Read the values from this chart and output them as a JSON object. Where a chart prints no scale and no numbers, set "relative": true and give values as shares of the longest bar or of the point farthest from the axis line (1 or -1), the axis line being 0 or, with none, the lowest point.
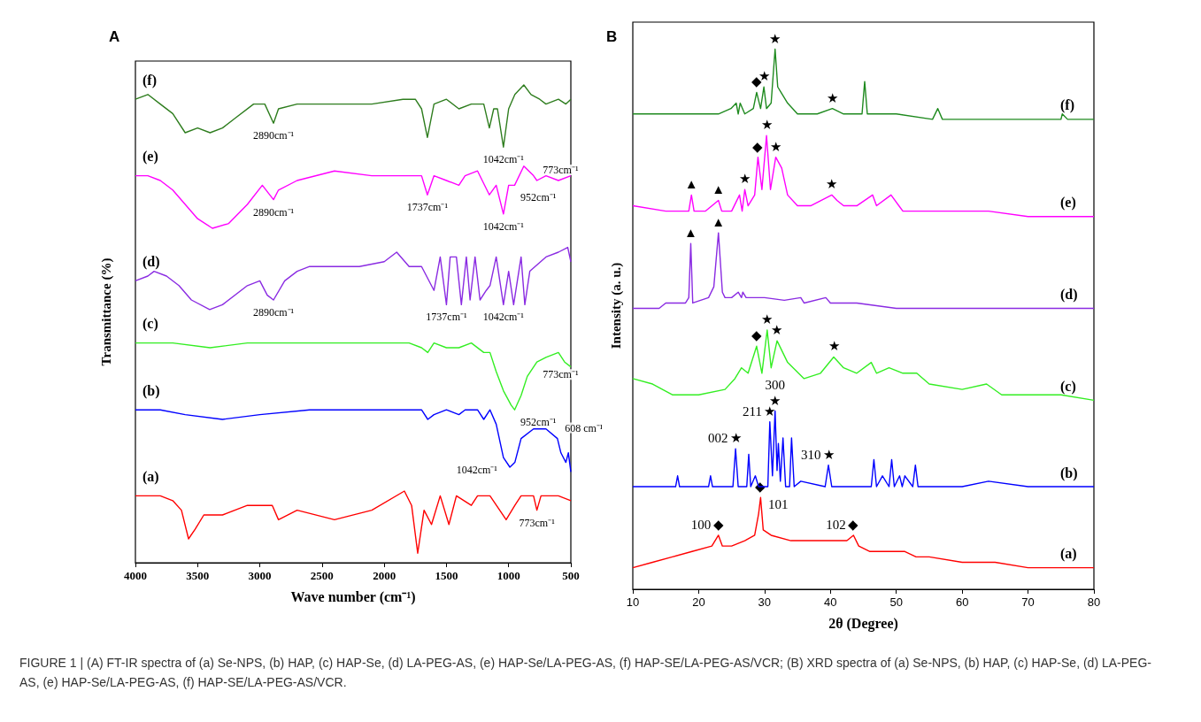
{
  "chart_data": [
    {
      "type": "line",
      "title": "A",
      "xlabel": "Wave number (cm⁻¹)",
      "ylabel": "Transmittance (%)",
      "relative": true,
      "xlim": [
        4000,
        500
      ],
      "xticks": [
        4000,
        3500,
        3000,
        2500,
        2000,
        1500,
        1000,
        500
      ],
      "grid": false,
      "legend": false,
      "marker": "none",
      "line_style": "solid",
      "series": [
        {
          "name": "(a)",
          "color": "#ff0000",
          "x": [
            4000,
            3800,
            3700,
            3630,
            3573,
            3520,
            3450,
            3300,
            3100,
            2900,
            2850,
            2700,
            2400,
            2100,
            1838,
            1780,
            1731,
            1680,
            1620,
            1550,
            1480,
            1420,
            1300,
            1250,
            1150,
            1020,
            950,
            900,
            800,
            773,
            740,
            600,
            500
          ],
          "values": [
            0.14,
            0.14,
            0.13,
            0.11,
            0.05,
            0.07,
            0.1,
            0.1,
            0.12,
            0.12,
            0.09,
            0.11,
            0.09,
            0.11,
            0.15,
            0.12,
            0.02,
            0.11,
            0.08,
            0.14,
            0.08,
            0.14,
            0.12,
            0.14,
            0.14,
            0.09,
            0.12,
            0.14,
            0.14,
            0.11,
            0.14,
            0.14,
            0.13
          ]
        },
        {
          "name": "(b)",
          "color": "#0000ff",
          "x": [
            4000,
            3800,
            3600,
            3300,
            3000,
            2600,
            2200,
            1800,
            1700,
            1650,
            1600,
            1500,
            1400,
            1350,
            1250,
            1200,
            1150,
            1100,
            1042,
            990,
            950,
            900,
            800,
            700,
            608,
            580,
            540,
            520,
            500
          ],
          "values": [
            0.32,
            0.32,
            0.31,
            0.3,
            0.31,
            0.32,
            0.32,
            0.32,
            0.32,
            0.3,
            0.31,
            0.32,
            0.31,
            0.32,
            0.32,
            0.3,
            0.32,
            0.29,
            0.22,
            0.2,
            0.21,
            0.26,
            0.28,
            0.28,
            0.26,
            0.23,
            0.21,
            0.23,
            0.19
          ]
        },
        {
          "name": "(c)",
          "color": "#33ee22",
          "x": [
            4000,
            3700,
            3400,
            3100,
            2900,
            2600,
            2200,
            1800,
            1700,
            1650,
            1600,
            1500,
            1400,
            1300,
            1200,
            1150,
            1100,
            1042,
            980,
            952,
            900,
            850,
            773,
            700,
            600,
            550,
            500
          ],
          "values": [
            0.46,
            0.46,
            0.45,
            0.46,
            0.46,
            0.46,
            0.46,
            0.46,
            0.45,
            0.44,
            0.46,
            0.45,
            0.45,
            0.46,
            0.44,
            0.44,
            0.4,
            0.36,
            0.33,
            0.32,
            0.35,
            0.39,
            0.42,
            0.43,
            0.44,
            0.42,
            0.41
          ]
        },
        {
          "name": "(d)",
          "color": "#8a2be2",
          "x": [
            4000,
            3900,
            3850,
            3750,
            3650,
            3550,
            3403,
            3300,
            3100,
            3000,
            2940,
            2890,
            2800,
            2700,
            2600,
            2400,
            2200,
            2000,
            1900,
            1800,
            1700,
            1600,
            1550,
            1500,
            1470,
            1420,
            1380,
            1340,
            1310,
            1270,
            1230,
            1180,
            1150,
            1100,
            1042,
            1000,
            960,
            900,
            870,
            830,
            700,
            600,
            525,
            500
          ],
          "values": [
            0.59,
            0.6,
            0.61,
            0.6,
            0.58,
            0.55,
            0.53,
            0.54,
            0.58,
            0.59,
            0.56,
            0.55,
            0.59,
            0.61,
            0.62,
            0.62,
            0.62,
            0.63,
            0.65,
            0.62,
            0.62,
            0.57,
            0.64,
            0.54,
            0.64,
            0.64,
            0.54,
            0.64,
            0.55,
            0.64,
            0.55,
            0.57,
            0.58,
            0.64,
            0.54,
            0.61,
            0.54,
            0.64,
            0.54,
            0.61,
            0.64,
            0.65,
            0.66,
            0.63
          ]
        },
        {
          "name": "(e)",
          "color": "#ff00ff",
          "x": [
            4000,
            3900,
            3800,
            3700,
            3600,
            3500,
            3381,
            3250,
            3100,
            2980,
            2890,
            2850,
            2700,
            2400,
            2100,
            1850,
            1700,
            1653,
            1600,
            1500,
            1400,
            1350,
            1250,
            1155,
            1100,
            1042,
            1000,
            952,
            878,
            800,
            773,
            700,
            600,
            500
          ],
          "values": [
            0.81,
            0.81,
            0.8,
            0.78,
            0.75,
            0.72,
            0.7,
            0.71,
            0.75,
            0.79,
            0.76,
            0.78,
            0.8,
            0.82,
            0.81,
            0.81,
            0.81,
            0.77,
            0.81,
            0.8,
            0.79,
            0.81,
            0.82,
            0.77,
            0.79,
            0.73,
            0.79,
            0.79,
            0.83,
            0.81,
            0.8,
            0.81,
            0.8,
            0.81
          ]
        },
        {
          "name": "(f)",
          "color": "#2e7d1e",
          "x": [
            4000,
            3900,
            3800,
            3700,
            3600,
            3500,
            3400,
            3300,
            3200,
            3050,
            2960,
            2890,
            2850,
            2700,
            2400,
            2100,
            1850,
            1750,
            1700,
            1653,
            1600,
            1500,
            1400,
            1300,
            1200,
            1155,
            1120,
            1090,
            1042,
            1000,
            950,
            878,
            820,
            750,
            700,
            600,
            540,
            500
          ],
          "values": [
            0.97,
            0.98,
            0.96,
            0.94,
            0.9,
            0.91,
            0.9,
            0.91,
            0.93,
            0.96,
            0.96,
            0.92,
            0.95,
            0.96,
            0.96,
            0.96,
            0.97,
            0.97,
            0.95,
            0.89,
            0.96,
            0.97,
            0.95,
            0.96,
            0.96,
            0.91,
            0.95,
            0.95,
            0.87,
            0.95,
            0.98,
            1.0,
            0.98,
            0.97,
            0.96,
            0.97,
            0.96,
            0.97
          ]
        }
      ],
      "annotations": [
        {
          "text": "2890cm⁻¹",
          "x": 2890,
          "y": 0.92
        },
        {
          "text": "1042cm⁻¹",
          "x": 1042,
          "y": 0.87
        },
        {
          "text": "2890cm⁻¹",
          "x": 2890,
          "y": 0.76
        },
        {
          "text": "1737cm⁻¹",
          "x": 1653,
          "y": 0.77
        },
        {
          "text": "1042cm⁻¹",
          "x": 1042,
          "y": 0.73
        },
        {
          "text": "952cm⁻¹",
          "x": 952,
          "y": 0.79
        },
        {
          "text": "773cm⁻¹",
          "x": 773,
          "y": 0.8
        },
        {
          "text": "2890cm⁻¹",
          "x": 2890,
          "y": 0.55
        },
        {
          "text": "1737cm⁻¹",
          "x": 1500,
          "y": 0.54
        },
        {
          "text": "1042cm⁻¹",
          "x": 1042,
          "y": 0.54
        },
        {
          "text": "773cm⁻¹",
          "x": 773,
          "y": 0.42
        },
        {
          "text": "952cm⁻¹",
          "x": 952,
          "y": 0.32
        },
        {
          "text": "608 cm⁻¹",
          "x": 608,
          "y": 0.26
        },
        {
          "text": "1042cm⁻¹",
          "x": 1042,
          "y": 0.22
        },
        {
          "text": "773cm⁻¹",
          "x": 773,
          "y": 0.11
        },
        "FIGURE 1 | (A) FT-IR spectra of (a) Se-NPS, (b) HAP, (c) HAP-Se, (d) LA-PEG-AS, (e) HAP-Se/LA-PEG-AS, (f) HAP-SE/LA-PEG-AS/VCR; (B) XRD spectra of (a) Se-NPS, (b) HAP, (c) HAP-Se, (d) LA-PEG-AS, (e) HAP-Se/LA-PEG-AS, (f) HAP-SE/LA-PEG-AS/VCR."
      ]
    },
    {
      "type": "line",
      "title": "B",
      "xlabel": "2θ (Degree)",
      "ylabel": "Intensity (a. u.)",
      "relative": true,
      "xlim": [
        10,
        80
      ],
      "xticks": [
        10,
        20,
        30,
        40,
        50,
        60,
        70,
        80
      ],
      "grid": false,
      "legend": false,
      "marker": "none",
      "line_style": "solid",
      "series": [
        {
          "name": "(a)",
          "color": "#ff0000",
          "x": [
            10,
            13,
            16,
            19,
            22,
            23.0,
            23.6,
            25,
            27,
            28.5,
            29.1,
            29.4,
            29.8,
            31,
            34,
            37,
            40,
            42.5,
            43.5,
            44.3,
            46,
            48.5,
            51.3,
            53,
            55,
            60,
            65,
            70,
            80
          ],
          "values": [
            0.04,
            0.05,
            0.06,
            0.07,
            0.08,
            0.1,
            0.08,
            0.08,
            0.09,
            0.1,
            0.14,
            0.17,
            0.11,
            0.1,
            0.09,
            0.09,
            0.09,
            0.09,
            0.1,
            0.08,
            0.07,
            0.07,
            0.07,
            0.06,
            0.06,
            0.05,
            0.05,
            0.04,
            0.04
          ]
        },
        {
          "name": "(b)",
          "color": "#0000ff",
          "x": [
            10,
            16.5,
            16.8,
            17.1,
            21.5,
            21.8,
            22.1,
            25.2,
            25.6,
            26.0,
            27.3,
            27.6,
            27.9,
            28.6,
            29.1,
            30.5,
            30.8,
            31.2,
            31.6,
            31.9,
            32.1,
            32.4,
            32.8,
            33.2,
            33.8,
            34.1,
            34.5,
            35.5,
            39.2,
            39.7,
            40.2,
            46.2,
            46.6,
            47.0,
            47.9,
            48.9,
            49.3,
            49.7,
            50.5,
            50.9,
            51.3,
            52.5,
            52.9,
            53.3,
            60,
            64,
            70,
            80
          ],
          "values": [
            0.19,
            0.19,
            0.21,
            0.19,
            0.19,
            0.21,
            0.19,
            0.19,
            0.26,
            0.19,
            0.19,
            0.25,
            0.19,
            0.21,
            0.19,
            0.19,
            0.31,
            0.21,
            0.33,
            0.22,
            0.27,
            0.2,
            0.28,
            0.19,
            0.19,
            0.28,
            0.19,
            0.2,
            0.19,
            0.23,
            0.19,
            0.19,
            0.24,
            0.19,
            0.21,
            0.19,
            0.24,
            0.19,
            0.21,
            0.19,
            0.21,
            0.19,
            0.23,
            0.19,
            0.19,
            0.2,
            0.19,
            0.19
          ]
        },
        {
          "name": "(c)",
          "color": "#33ee22",
          "x": [
            10,
            13,
            16,
            20,
            24,
            25.5,
            26.5,
            27.5,
            28.8,
            29.6,
            30.4,
            31.0,
            31.9,
            33.5,
            36,
            38.5,
            40.5,
            42,
            44,
            46.2,
            47,
            48.9,
            51,
            53.1,
            55,
            60,
            63.7,
            66,
            70,
            75,
            80
          ],
          "values": [
            0.39,
            0.38,
            0.36,
            0.36,
            0.37,
            0.39,
            0.41,
            0.4,
            0.45,
            0.4,
            0.48,
            0.41,
            0.46,
            0.42,
            0.39,
            0.4,
            0.43,
            0.41,
            0.4,
            0.42,
            0.4,
            0.41,
            0.4,
            0.4,
            0.38,
            0.37,
            0.38,
            0.36,
            0.36,
            0.36,
            0.35
          ]
        },
        {
          "name": "(d)",
          "color": "#8a2be2",
          "x": [
            10,
            14,
            15,
            18,
            18.5,
            18.8,
            19.1,
            21.5,
            22.3,
            23.0,
            23.6,
            24.0,
            25.0,
            26.0,
            26.5,
            26.7,
            27.2,
            30,
            33,
            35.5,
            36,
            39.3,
            40,
            44,
            50,
            60,
            70,
            80
          ],
          "values": [
            0.52,
            0.52,
            0.53,
            0.53,
            0.54,
            0.64,
            0.53,
            0.54,
            0.56,
            0.66,
            0.55,
            0.54,
            0.54,
            0.55,
            0.54,
            0.55,
            0.54,
            0.54,
            0.535,
            0.54,
            0.53,
            0.54,
            0.53,
            0.53,
            0.52,
            0.52,
            0.52,
            0.52
          ]
        },
        {
          "name": "(e)",
          "color": "#ff00ff",
          "x": [
            10,
            15,
            18.5,
            18.9,
            19.3,
            21,
            23.0,
            23.5,
            25,
            26.2,
            26.6,
            27.0,
            27.5,
            28.5,
            29.0,
            29.6,
            30.3,
            30.9,
            31.7,
            32.6,
            33.5,
            35,
            37,
            40.2,
            41,
            42,
            44,
            46.4,
            47,
            49.2,
            51,
            55,
            61.3,
            64,
            70,
            80
          ],
          "values": [
            0.71,
            0.7,
            0.7,
            0.73,
            0.7,
            0.7,
            0.72,
            0.7,
            0.7,
            0.73,
            0.7,
            0.74,
            0.71,
            0.73,
            0.8,
            0.74,
            0.84,
            0.74,
            0.8,
            0.78,
            0.73,
            0.71,
            0.71,
            0.73,
            0.72,
            0.71,
            0.71,
            0.73,
            0.71,
            0.73,
            0.7,
            0.7,
            0.7,
            0.7,
            0.69,
            0.69
          ]
        },
        {
          "name": "(f)",
          "color": "#1f8a1f",
          "x": [
            10,
            15,
            20,
            23,
            24.9,
            25.7,
            26.0,
            26.3,
            27,
            28.3,
            28.8,
            29.4,
            29.9,
            30.3,
            31.0,
            31.6,
            32.0,
            32.5,
            33.5,
            35,
            38,
            40.3,
            42,
            44.8,
            45.2,
            45.6,
            46.5,
            50,
            55.5,
            56.3,
            57,
            65,
            75,
            75.2,
            76,
            80
          ],
          "values": [
            0.88,
            0.88,
            0.88,
            0.88,
            0.89,
            0.9,
            0.88,
            0.9,
            0.88,
            0.89,
            0.92,
            0.89,
            0.93,
            0.89,
            0.9,
            1.0,
            0.93,
            0.92,
            0.9,
            0.88,
            0.88,
            0.89,
            0.88,
            0.88,
            0.94,
            0.88,
            0.88,
            0.88,
            0.87,
            0.89,
            0.87,
            0.87,
            0.87,
            0.88,
            0.87,
            0.87
          ]
        }
      ],
      "annotations": [
        {
          "text": "◆",
          "x": 28.8,
          "y": 0.92
        },
        {
          "text": "★",
          "x": 29.9,
          "y": 0.93
        },
        {
          "text": "★",
          "x": 31.6,
          "y": 1.0
        },
        {
          "text": "★",
          "x": 40.3,
          "y": 0.89
        },
        {
          "text": "▲",
          "x": 18.9,
          "y": 0.73
        },
        {
          "text": "▲",
          "x": 23.0,
          "y": 0.72
        },
        {
          "text": "★",
          "x": 27.0,
          "y": 0.74
        },
        {
          "text": "◆",
          "x": 29.0,
          "y": 0.8
        },
        {
          "text": "★",
          "x": 30.3,
          "y": 0.84
        },
        {
          "text": "★",
          "x": 31.7,
          "y": 0.8
        },
        {
          "text": "★",
          "x": 40.2,
          "y": 0.73
        },
        {
          "text": "▲",
          "x": 18.8,
          "y": 0.64
        },
        {
          "text": "▲",
          "x": 23.0,
          "y": 0.66
        },
        {
          "text": "◆",
          "x": 28.8,
          "y": 0.45
        },
        {
          "text": "★",
          "x": 30.4,
          "y": 0.48
        },
        {
          "text": "★",
          "x": 31.9,
          "y": 0.46
        },
        {
          "text": "★",
          "x": 40.5,
          "y": 0.43
        },
        {
          "text": "★",
          "x": 25.6,
          "y": 0.26
        },
        {
          "text": "002",
          "x": 25.6,
          "y": 0.26
        },
        {
          "text": "★",
          "x": 30.8,
          "y": 0.31
        },
        {
          "text": "211",
          "x": 30.8,
          "y": 0.31
        },
        {
          "text": "★",
          "x": 31.6,
          "y": 0.33
        },
        {
          "text": "300",
          "x": 31.6,
          "y": 0.33
        },
        {
          "text": "★",
          "x": 39.7,
          "y": 0.23
        },
        {
          "text": "310",
          "x": 39.7,
          "y": 0.23
        },
        {
          "text": "◆",
          "x": 23.0,
          "y": 0.1
        },
        {
          "text": "100",
          "x": 23.0,
          "y": 0.1
        },
        {
          "text": "◆",
          "x": 29.4,
          "y": 0.17
        },
        {
          "text": "101",
          "x": 29.4,
          "y": 0.17
        },
        {
          "text": "◆",
          "x": 43.5,
          "y": 0.1
        },
        {
          "text": "102",
          "x": 43.5,
          "y": 0.1
        }
      ]
    }
  ]
}
